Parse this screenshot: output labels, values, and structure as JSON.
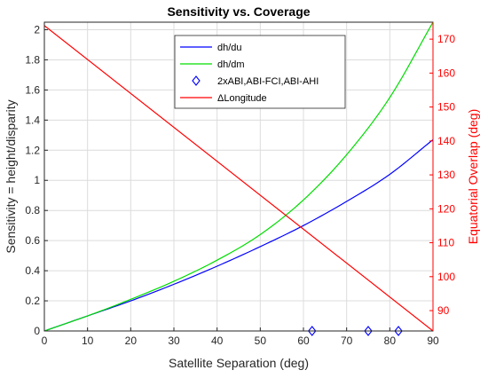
{
  "chart_data": {
    "type": "line",
    "title": "Sensitivity vs. Coverage",
    "xlabel": "Satellite Separation (deg)",
    "ylabel": "Sensitivity = height/disparity",
    "y2label": "Equatorial Overlap (deg)",
    "xlim": [
      0,
      90
    ],
    "ylim": [
      0,
      2.05
    ],
    "y2lim": [
      84,
      175
    ],
    "x_ticks": [
      "0",
      "10",
      "20",
      "30",
      "40",
      "50",
      "60",
      "70",
      "80",
      "90"
    ],
    "y_ticks": [
      "0",
      "0.2",
      "0.4",
      "0.6",
      "0.8",
      "1",
      "1.2",
      "1.4",
      "1.6",
      "1.8",
      "2"
    ],
    "y2_ticks": [
      "90",
      "100",
      "110",
      "120",
      "130",
      "140",
      "150",
      "160",
      "170"
    ],
    "grid": true,
    "legend_position": "top-center",
    "series": [
      {
        "name": "dh/du",
        "axis": "left",
        "color": "#0000ff",
        "style": "line",
        "x": [
          0,
          10,
          20,
          30,
          40,
          50,
          60,
          70,
          80,
          90
        ],
        "y": [
          0,
          0.1,
          0.2,
          0.31,
          0.43,
          0.56,
          0.7,
          0.86,
          1.04,
          1.27
        ]
      },
      {
        "name": "dh/dm",
        "axis": "left",
        "color": "#00dd00",
        "style": "line",
        "x": [
          0,
          10,
          20,
          30,
          40,
          50,
          60,
          70,
          80,
          90
        ],
        "y": [
          0,
          0.1,
          0.21,
          0.33,
          0.47,
          0.64,
          0.87,
          1.17,
          1.55,
          2.05
        ]
      },
      {
        "name": "2xABI,ABI-FCI,ABI-AHI",
        "axis": "left",
        "color": "#0000ff",
        "style": "marker-diamond",
        "x": [
          62,
          75,
          82
        ],
        "y": [
          0,
          0,
          0
        ]
      },
      {
        "name": "ΔLongitude",
        "axis": "right",
        "color": "#ff0000",
        "style": "line",
        "x": [
          0,
          90
        ],
        "y": [
          174,
          84
        ]
      }
    ]
  }
}
